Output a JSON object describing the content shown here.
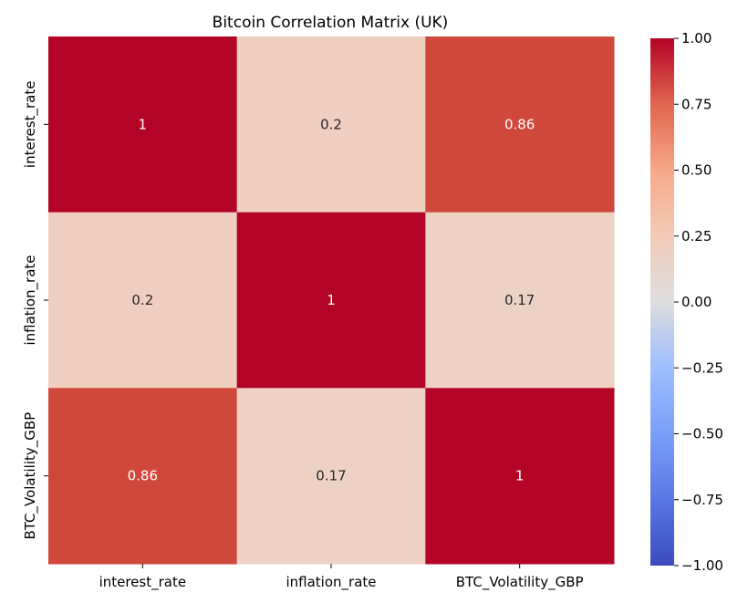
{
  "chart_data": {
    "type": "heatmap",
    "title": "Bitcoin Correlation Matrix (UK)",
    "rows": [
      "interest_rate",
      "inflation_rate",
      "BTC_Volatility_GBP"
    ],
    "columns": [
      "interest_rate",
      "inflation_rate",
      "BTC_Volatility_GBP"
    ],
    "values": [
      [
        1.0,
        0.2,
        0.86
      ],
      [
        0.2,
        1.0,
        0.17
      ],
      [
        0.86,
        0.17,
        1.0
      ]
    ],
    "annotations": [
      [
        "1",
        "0.2",
        "0.86"
      ],
      [
        "0.2",
        "1",
        "0.17"
      ],
      [
        "0.86",
        "0.17",
        "1"
      ]
    ],
    "colormap": "coolwarm",
    "vmin": -1.0,
    "vmax": 1.0,
    "colorbar_ticks": [
      1.0,
      0.75,
      0.5,
      0.25,
      0.0,
      -0.25,
      -0.5,
      -0.75,
      -1.0
    ],
    "colorbar_tick_labels": [
      "1.00",
      "0.75",
      "0.50",
      "0.25",
      "0.00",
      "−0.25",
      "−0.50",
      "−0.75",
      "−1.00"
    ]
  }
}
